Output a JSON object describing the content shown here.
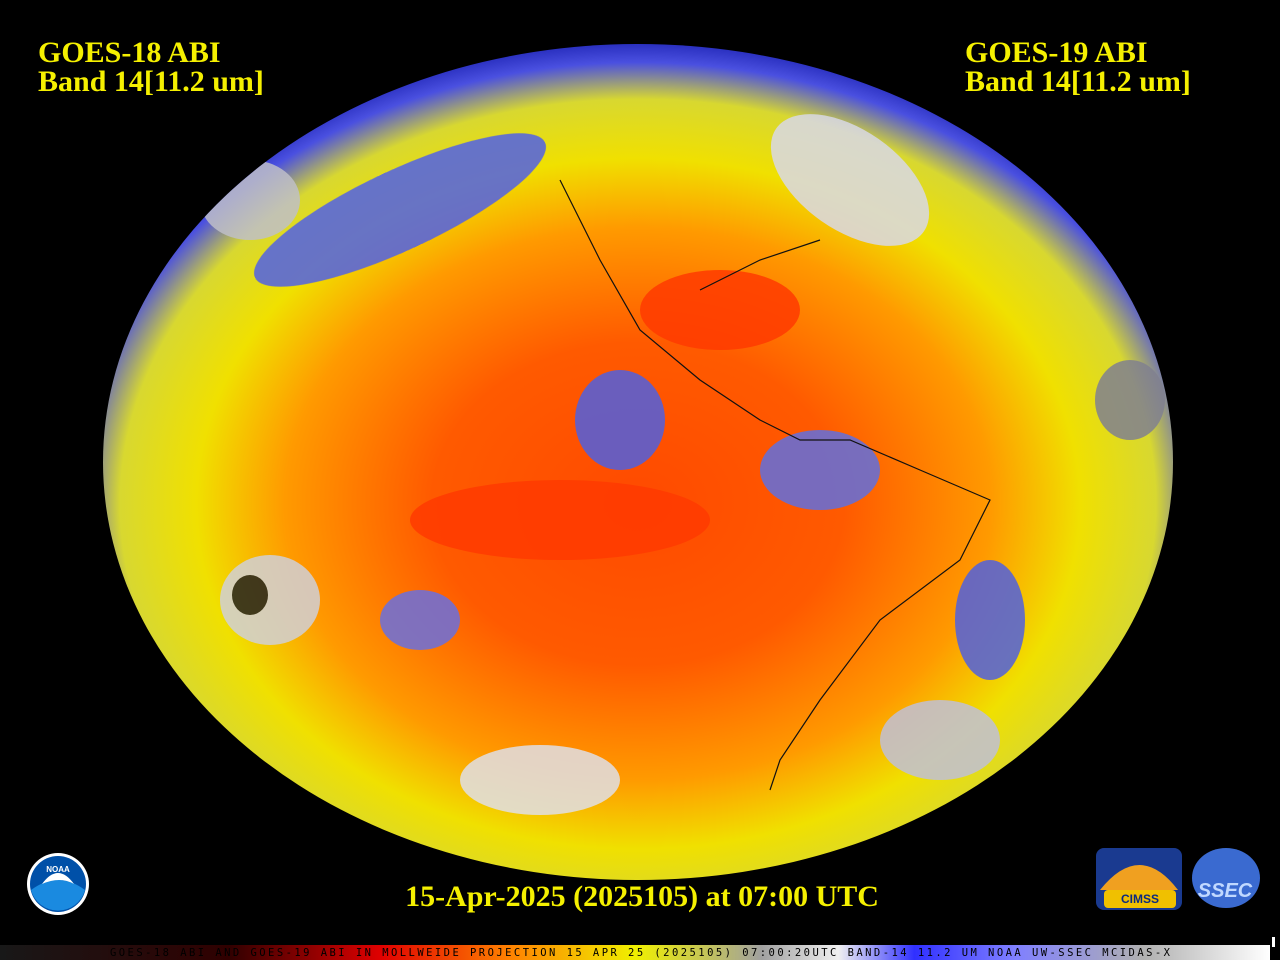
{
  "header": {
    "left": {
      "satellite": "GOES-18 ABI",
      "band": "Band 14[11.2 um]"
    },
    "right": {
      "satellite": "GOES-19 ABI",
      "band": "Band 14[11.2 um]"
    }
  },
  "timestamp": "15-Apr-2025 (2025105) at 07:00 UTC",
  "logos": {
    "noaa": "NOAA",
    "cimss": "CIMSS",
    "ssec": "SSEC"
  },
  "footer": "GOES-18 ABI AND GOES-19 ABI IN MOLLWEIDE PROJECTION 15 APR 25 (2025105) 07:00:20UTC BAND-14 11.2 UM NOAA UW-SSEC MCIDAS-X"
}
